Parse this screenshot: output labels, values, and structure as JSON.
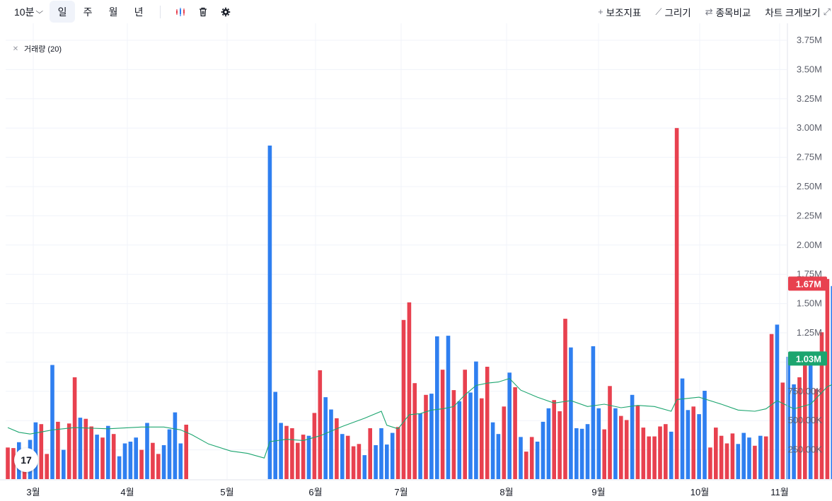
{
  "toolbar": {
    "interval": "10분",
    "periods": [
      "일",
      "주",
      "월",
      "년"
    ],
    "active_period": "일",
    "icons": [
      "candle-type-icon",
      "trash-icon",
      "gear-icon"
    ],
    "tools": [
      {
        "icon": "plus-icon",
        "label": "보조지표"
      },
      {
        "icon": "pencil-icon",
        "label": "그리기"
      },
      {
        "icon": "compare-arrows-icon",
        "label": "종목비교"
      },
      {
        "icon": "expand-icon",
        "label": "차트 크게보기"
      }
    ]
  },
  "legend": {
    "label": "거래량 (20)"
  },
  "logo": {
    "text": "17"
  },
  "colors": {
    "up": "#e8414f",
    "down": "#2f7ff0",
    "ma": "#1ca56f",
    "grid": "#f0f3fa",
    "axis_text": "#5d606b"
  },
  "chart_data": {
    "type": "bar",
    "title": "",
    "xlabel": "",
    "ylabel": "",
    "ylim": [
      0,
      3750000
    ],
    "yticks": [
      250000,
      500000,
      750000,
      1000000,
      1250000,
      1500000,
      1750000,
      2000000,
      2250000,
      2500000,
      2750000,
      3000000,
      3250000,
      3500000,
      3750000
    ],
    "ytick_labels": [
      "250.00K",
      "500.00K",
      "750.00K",
      "1.00M",
      "1.25M",
      "1.50M",
      "1.75M",
      "2.00M",
      "2.25M",
      "2.50M",
      "2.75M",
      "3.00M",
      "3.25M",
      "3.50M",
      "3.75M"
    ],
    "x_months": [
      "3월",
      "4월",
      "5월",
      "6월",
      "7월",
      "8월",
      "9월",
      "10월",
      "11월"
    ],
    "price_labels": [
      {
        "text": "1.67M",
        "value": 1670000,
        "color": "#e8414f"
      },
      {
        "text": "1.03M",
        "value": 1030000,
        "color": "#1ca56f"
      }
    ],
    "bars": [
      {
        "t": 0,
        "v": 270000,
        "d": "up"
      },
      {
        "t": 1,
        "v": 265000,
        "d": "up"
      },
      {
        "t": 2,
        "v": 315000,
        "d": "down"
      },
      {
        "t": 3,
        "v": 245000,
        "d": "up"
      },
      {
        "t": 4,
        "v": 335000,
        "d": "down"
      },
      {
        "t": 5,
        "v": 485000,
        "d": "down"
      },
      {
        "t": 6,
        "v": 470000,
        "d": "up"
      },
      {
        "t": 7,
        "v": 215000,
        "d": "up"
      },
      {
        "t": 8,
        "v": 975000,
        "d": "down"
      },
      {
        "t": 9,
        "v": 490000,
        "d": "up"
      },
      {
        "t": 10,
        "v": 250000,
        "d": "down"
      },
      {
        "t": 11,
        "v": 475000,
        "d": "up"
      },
      {
        "t": 12,
        "v": 870000,
        "d": "up"
      },
      {
        "t": 13,
        "v": 525000,
        "d": "down"
      },
      {
        "t": 14,
        "v": 515000,
        "d": "up"
      },
      {
        "t": 15,
        "v": 450000,
        "d": "up"
      },
      {
        "t": 16,
        "v": 380000,
        "d": "down"
      },
      {
        "t": 17,
        "v": 355000,
        "d": "up"
      },
      {
        "t": 18,
        "v": 455000,
        "d": "down"
      },
      {
        "t": 19,
        "v": 385000,
        "d": "up"
      },
      {
        "t": 20,
        "v": 195000,
        "d": "down"
      },
      {
        "t": 21,
        "v": 305000,
        "d": "down"
      },
      {
        "t": 22,
        "v": 320000,
        "d": "down"
      },
      {
        "t": 23,
        "v": 355000,
        "d": "down"
      },
      {
        "t": 24,
        "v": 250000,
        "d": "up"
      },
      {
        "t": 25,
        "v": 480000,
        "d": "down"
      },
      {
        "t": 26,
        "v": 310000,
        "d": "up"
      },
      {
        "t": 27,
        "v": 215000,
        "d": "up"
      },
      {
        "t": 28,
        "v": 290000,
        "d": "down"
      },
      {
        "t": 29,
        "v": 425000,
        "d": "down"
      },
      {
        "t": 30,
        "v": 570000,
        "d": "down"
      },
      {
        "t": 31,
        "v": 305000,
        "d": "down"
      },
      {
        "t": 32,
        "v": 465000,
        "d": "up"
      },
      {
        "t": 47,
        "v": 2850000,
        "d": "down"
      },
      {
        "t": 48,
        "v": 745000,
        "d": "down"
      },
      {
        "t": 49,
        "v": 480000,
        "d": "down"
      },
      {
        "t": 50,
        "v": 455000,
        "d": "up"
      },
      {
        "t": 51,
        "v": 435000,
        "d": "up"
      },
      {
        "t": 52,
        "v": 310000,
        "d": "up"
      },
      {
        "t": 53,
        "v": 380000,
        "d": "up"
      },
      {
        "t": 54,
        "v": 370000,
        "d": "down"
      },
      {
        "t": 55,
        "v": 565000,
        "d": "up"
      },
      {
        "t": 56,
        "v": 930000,
        "d": "up"
      },
      {
        "t": 57,
        "v": 700000,
        "d": "down"
      },
      {
        "t": 58,
        "v": 595000,
        "d": "down"
      },
      {
        "t": 59,
        "v": 520000,
        "d": "up"
      },
      {
        "t": 60,
        "v": 385000,
        "d": "down"
      },
      {
        "t": 61,
        "v": 370000,
        "d": "up"
      },
      {
        "t": 62,
        "v": 280000,
        "d": "up"
      },
      {
        "t": 63,
        "v": 300000,
        "d": "up"
      },
      {
        "t": 64,
        "v": 205000,
        "d": "down"
      },
      {
        "t": 65,
        "v": 435000,
        "d": "up"
      },
      {
        "t": 66,
        "v": 290000,
        "d": "down"
      },
      {
        "t": 67,
        "v": 435000,
        "d": "down"
      },
      {
        "t": 68,
        "v": 295000,
        "d": "down"
      },
      {
        "t": 69,
        "v": 395000,
        "d": "down"
      },
      {
        "t": 70,
        "v": 445000,
        "d": "up"
      },
      {
        "t": 71,
        "v": 1360000,
        "d": "up"
      },
      {
        "t": 72,
        "v": 1510000,
        "d": "up"
      },
      {
        "t": 73,
        "v": 820000,
        "d": "up"
      },
      {
        "t": 74,
        "v": 560000,
        "d": "down"
      },
      {
        "t": 75,
        "v": 720000,
        "d": "up"
      },
      {
        "t": 76,
        "v": 730000,
        "d": "down"
      },
      {
        "t": 77,
        "v": 1220000,
        "d": "down"
      },
      {
        "t": 78,
        "v": 935000,
        "d": "up"
      },
      {
        "t": 79,
        "v": 1225000,
        "d": "down"
      },
      {
        "t": 80,
        "v": 760000,
        "d": "up"
      },
      {
        "t": 81,
        "v": 665000,
        "d": "down"
      },
      {
        "t": 82,
        "v": 935000,
        "d": "up"
      },
      {
        "t": 83,
        "v": 740000,
        "d": "down"
      },
      {
        "t": 84,
        "v": 1005000,
        "d": "down"
      },
      {
        "t": 85,
        "v": 690000,
        "d": "up"
      },
      {
        "t": 86,
        "v": 960000,
        "d": "up"
      },
      {
        "t": 87,
        "v": 485000,
        "d": "down"
      },
      {
        "t": 88,
        "v": 385000,
        "d": "down"
      },
      {
        "t": 89,
        "v": 620000,
        "d": "up"
      },
      {
        "t": 90,
        "v": 910000,
        "d": "down"
      },
      {
        "t": 91,
        "v": 785000,
        "d": "up"
      },
      {
        "t": 92,
        "v": 360000,
        "d": "down"
      },
      {
        "t": 93,
        "v": 235000,
        "d": "up"
      },
      {
        "t": 94,
        "v": 360000,
        "d": "up"
      },
      {
        "t": 95,
        "v": 320000,
        "d": "down"
      },
      {
        "t": 96,
        "v": 490000,
        "d": "down"
      },
      {
        "t": 97,
        "v": 605000,
        "d": "down"
      },
      {
        "t": 98,
        "v": 675000,
        "d": "up"
      },
      {
        "t": 99,
        "v": 580000,
        "d": "up"
      },
      {
        "t": 100,
        "v": 1370000,
        "d": "up"
      },
      {
        "t": 101,
        "v": 1125000,
        "d": "down"
      },
      {
        "t": 102,
        "v": 435000,
        "d": "down"
      },
      {
        "t": 103,
        "v": 430000,
        "d": "down"
      },
      {
        "t": 104,
        "v": 470000,
        "d": "down"
      },
      {
        "t": 105,
        "v": 1135000,
        "d": "down"
      },
      {
        "t": 106,
        "v": 605000,
        "d": "down"
      },
      {
        "t": 107,
        "v": 425000,
        "d": "up"
      },
      {
        "t": 108,
        "v": 795000,
        "d": "up"
      },
      {
        "t": 109,
        "v": 605000,
        "d": "down"
      },
      {
        "t": 110,
        "v": 540000,
        "d": "up"
      },
      {
        "t": 111,
        "v": 505000,
        "d": "up"
      },
      {
        "t": 112,
        "v": 720000,
        "d": "down"
      },
      {
        "t": 113,
        "v": 630000,
        "d": "up"
      },
      {
        "t": 114,
        "v": 440000,
        "d": "up"
      },
      {
        "t": 115,
        "v": 365000,
        "d": "up"
      },
      {
        "t": 116,
        "v": 365000,
        "d": "up"
      },
      {
        "t": 117,
        "v": 450000,
        "d": "up"
      },
      {
        "t": 118,
        "v": 470000,
        "d": "up"
      },
      {
        "t": 119,
        "v": 405000,
        "d": "down"
      },
      {
        "t": 120,
        "v": 3000000,
        "d": "up"
      },
      {
        "t": 121,
        "v": 860000,
        "d": "down"
      },
      {
        "t": 122,
        "v": 590000,
        "d": "down"
      },
      {
        "t": 123,
        "v": 620000,
        "d": "up"
      },
      {
        "t": 124,
        "v": 555000,
        "d": "down"
      },
      {
        "t": 125,
        "v": 755000,
        "d": "down"
      },
      {
        "t": 126,
        "v": 270000,
        "d": "up"
      },
      {
        "t": 127,
        "v": 440000,
        "d": "up"
      },
      {
        "t": 128,
        "v": 370000,
        "d": "up"
      },
      {
        "t": 129,
        "v": 305000,
        "d": "up"
      },
      {
        "t": 130,
        "v": 390000,
        "d": "up"
      },
      {
        "t": 131,
        "v": 300000,
        "d": "down"
      },
      {
        "t": 132,
        "v": 395000,
        "d": "down"
      },
      {
        "t": 133,
        "v": 355000,
        "d": "down"
      },
      {
        "t": 134,
        "v": 285000,
        "d": "up"
      },
      {
        "t": 135,
        "v": 370000,
        "d": "down"
      },
      {
        "t": 136,
        "v": 365000,
        "d": "up"
      },
      {
        "t": 137,
        "v": 1240000,
        "d": "up"
      },
      {
        "t": 138,
        "v": 1320000,
        "d": "down"
      },
      {
        "t": 139,
        "v": 825000,
        "d": "up"
      },
      {
        "t": 140,
        "v": 1045000,
        "d": "down"
      },
      {
        "t": 141,
        "v": 810000,
        "d": "down"
      },
      {
        "t": 142,
        "v": 870000,
        "d": "up"
      },
      {
        "t": 143,
        "v": 1050000,
        "d": "up"
      },
      {
        "t": 144,
        "v": 990000,
        "d": "down"
      },
      {
        "t": 145,
        "v": 770000,
        "d": "up"
      },
      {
        "t": 146,
        "v": 1255000,
        "d": "up"
      },
      {
        "t": 147,
        "v": 1710000,
        "d": "up"
      },
      {
        "t": 148,
        "v": 1650000,
        "d": "down"
      },
      {
        "t": 149,
        "v": 950000,
        "d": "up"
      },
      {
        "t": 150,
        "v": 715000,
        "d": "down"
      },
      {
        "t": 151,
        "v": 680000,
        "d": "down"
      },
      {
        "t": 152,
        "v": 475000,
        "d": "down"
      },
      {
        "t": 153,
        "v": 500000,
        "d": "down"
      },
      {
        "t": 154,
        "v": 655000,
        "d": "up"
      },
      {
        "t": 155,
        "v": 1500000,
        "d": "down"
      },
      {
        "t": 156,
        "v": 1670000,
        "d": "up"
      }
    ],
    "ma_line": [
      {
        "t": 0,
        "v": 440000
      },
      {
        "t": 2,
        "v": 400000
      },
      {
        "t": 4,
        "v": 385000
      },
      {
        "t": 8,
        "v": 420000
      },
      {
        "t": 12,
        "v": 440000
      },
      {
        "t": 18,
        "v": 430000
      },
      {
        "t": 24,
        "v": 445000
      },
      {
        "t": 28,
        "v": 445000
      },
      {
        "t": 31,
        "v": 420000
      },
      {
        "t": 33,
        "v": 380000
      },
      {
        "t": 36,
        "v": 300000
      },
      {
        "t": 40,
        "v": 240000
      },
      {
        "t": 43,
        "v": 220000
      },
      {
        "t": 46,
        "v": 180000
      },
      {
        "t": 47,
        "v": 320000
      },
      {
        "t": 50,
        "v": 340000
      },
      {
        "t": 53,
        "v": 330000
      },
      {
        "t": 56,
        "v": 370000
      },
      {
        "t": 60,
        "v": 450000
      },
      {
        "t": 64,
        "v": 520000
      },
      {
        "t": 67,
        "v": 580000
      },
      {
        "t": 68,
        "v": 460000
      },
      {
        "t": 70,
        "v": 430000
      },
      {
        "t": 72,
        "v": 550000
      },
      {
        "t": 74,
        "v": 560000
      },
      {
        "t": 76,
        "v": 590000
      },
      {
        "t": 78,
        "v": 600000
      },
      {
        "t": 80,
        "v": 620000
      },
      {
        "t": 82,
        "v": 720000
      },
      {
        "t": 84,
        "v": 800000
      },
      {
        "t": 86,
        "v": 820000
      },
      {
        "t": 88,
        "v": 830000
      },
      {
        "t": 90,
        "v": 860000
      },
      {
        "t": 92,
        "v": 760000
      },
      {
        "t": 95,
        "v": 700000
      },
      {
        "t": 98,
        "v": 650000
      },
      {
        "t": 101,
        "v": 670000
      },
      {
        "t": 104,
        "v": 620000
      },
      {
        "t": 107,
        "v": 640000
      },
      {
        "t": 110,
        "v": 610000
      },
      {
        "t": 113,
        "v": 630000
      },
      {
        "t": 116,
        "v": 620000
      },
      {
        "t": 119,
        "v": 580000
      },
      {
        "t": 120,
        "v": 680000
      },
      {
        "t": 124,
        "v": 700000
      },
      {
        "t": 128,
        "v": 640000
      },
      {
        "t": 131,
        "v": 590000
      },
      {
        "t": 134,
        "v": 580000
      },
      {
        "t": 136,
        "v": 600000
      },
      {
        "t": 138,
        "v": 670000
      },
      {
        "t": 141,
        "v": 600000
      },
      {
        "t": 144,
        "v": 640000
      },
      {
        "t": 147,
        "v": 790000
      },
      {
        "t": 150,
        "v": 850000
      },
      {
        "t": 153,
        "v": 900000
      },
      {
        "t": 155,
        "v": 950000
      },
      {
        "t": 156,
        "v": 1030000
      }
    ]
  }
}
